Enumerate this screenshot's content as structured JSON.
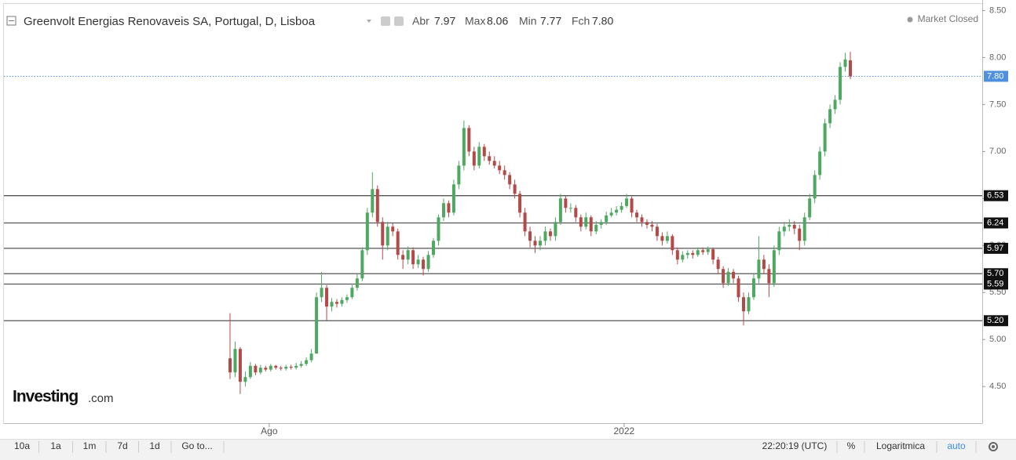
{
  "chart_data": {
    "type": "candlestick",
    "title": "Greenvolt Energias Renovaveis SA, Portugal, D, Lisboa",
    "header_values": [
      {
        "name": "Abr",
        "label": "7.97"
      },
      {
        "name": "Max",
        "label": "8.06"
      },
      {
        "name": "Min",
        "label": "7.77"
      },
      {
        "name": "Fch",
        "label": "7.80"
      }
    ],
    "status": "Market Closed",
    "logo": "Investing",
    "logo_suffix": ".com",
    "up_color": "#4fa862",
    "down_color": "#b34a4a",
    "candles": [
      [
        4.8,
        5.28,
        4.58,
        4.65
      ],
      [
        4.65,
        4.98,
        4.6,
        4.9
      ],
      [
        4.9,
        4.92,
        4.42,
        4.55
      ],
      [
        4.55,
        4.66,
        4.5,
        4.6
      ],
      [
        4.6,
        4.76,
        4.58,
        4.72
      ],
      [
        4.72,
        4.74,
        4.62,
        4.65
      ],
      [
        4.65,
        4.73,
        4.63,
        4.7
      ],
      [
        4.7,
        4.72,
        4.66,
        4.68
      ],
      [
        4.68,
        4.74,
        4.66,
        4.72
      ],
      [
        4.72,
        4.73,
        4.68,
        4.7
      ],
      [
        4.7,
        4.72,
        4.67,
        4.69
      ],
      [
        4.69,
        4.73,
        4.67,
        4.71
      ],
      [
        4.71,
        4.73,
        4.68,
        4.7
      ],
      [
        4.7,
        4.75,
        4.68,
        4.72
      ],
      [
        4.72,
        4.77,
        4.7,
        4.74
      ],
      [
        4.74,
        4.81,
        4.72,
        4.78
      ],
      [
        4.78,
        4.9,
        4.76,
        4.85
      ],
      [
        4.85,
        5.5,
        4.85,
        5.45
      ],
      [
        5.45,
        5.72,
        5.4,
        5.55
      ],
      [
        5.55,
        5.58,
        5.2,
        5.35
      ],
      [
        5.35,
        5.44,
        5.3,
        5.4
      ],
      [
        5.4,
        5.43,
        5.34,
        5.38
      ],
      [
        5.38,
        5.45,
        5.35,
        5.42
      ],
      [
        5.42,
        5.48,
        5.39,
        5.45
      ],
      [
        5.45,
        5.58,
        5.43,
        5.55
      ],
      [
        5.55,
        5.7,
        5.52,
        5.65
      ],
      [
        5.65,
        5.98,
        5.62,
        5.95
      ],
      [
        5.95,
        6.4,
        5.9,
        6.35
      ],
      [
        6.35,
        6.78,
        6.3,
        6.6
      ],
      [
        6.6,
        6.64,
        6.2,
        6.25
      ],
      [
        6.25,
        6.3,
        5.85,
        6.0
      ],
      [
        6.0,
        6.25,
        5.95,
        6.2
      ],
      [
        6.2,
        6.24,
        6.1,
        6.15
      ],
      [
        6.15,
        6.18,
        5.85,
        5.9
      ],
      [
        5.9,
        5.95,
        5.75,
        5.85
      ],
      [
        5.85,
        5.99,
        5.8,
        5.95
      ],
      [
        5.95,
        5.98,
        5.75,
        5.8
      ],
      [
        5.8,
        5.9,
        5.76,
        5.85
      ],
      [
        5.85,
        5.88,
        5.68,
        5.75
      ],
      [
        5.75,
        5.94,
        5.72,
        5.9
      ],
      [
        5.9,
        6.08,
        5.87,
        6.05
      ],
      [
        6.05,
        6.33,
        6.0,
        6.3
      ],
      [
        6.3,
        6.5,
        6.26,
        6.45
      ],
      [
        6.45,
        6.48,
        6.3,
        6.35
      ],
      [
        6.35,
        6.7,
        6.32,
        6.65
      ],
      [
        6.65,
        6.9,
        6.6,
        6.85
      ],
      [
        6.85,
        7.33,
        6.8,
        7.25
      ],
      [
        7.25,
        7.28,
        6.95,
        7.0
      ],
      [
        7.0,
        7.05,
        6.8,
        6.85
      ],
      [
        6.85,
        7.1,
        6.82,
        7.05
      ],
      [
        7.05,
        7.08,
        6.9,
        6.95
      ],
      [
        6.95,
        7.0,
        6.86,
        6.9
      ],
      [
        6.9,
        6.95,
        6.82,
        6.85
      ],
      [
        6.85,
        6.9,
        6.76,
        6.8
      ],
      [
        6.8,
        6.85,
        6.7,
        6.75
      ],
      [
        6.75,
        6.78,
        6.6,
        6.65
      ],
      [
        6.65,
        6.7,
        6.5,
        6.55
      ],
      [
        6.55,
        6.58,
        6.3,
        6.35
      ],
      [
        6.35,
        6.4,
        6.1,
        6.15
      ],
      [
        6.15,
        6.2,
        5.98,
        6.05
      ],
      [
        6.05,
        6.1,
        5.92,
        6.0
      ],
      [
        6.0,
        6.1,
        5.95,
        6.05
      ],
      [
        6.05,
        6.2,
        6.0,
        6.15
      ],
      [
        6.15,
        6.18,
        6.05,
        6.1
      ],
      [
        6.1,
        6.3,
        6.05,
        6.25
      ],
      [
        6.25,
        6.55,
        6.22,
        6.5
      ],
      [
        6.5,
        6.53,
        6.35,
        6.4
      ],
      [
        6.4,
        6.45,
        6.35,
        6.4
      ],
      [
        6.4,
        6.43,
        6.25,
        6.3
      ],
      [
        6.3,
        6.33,
        6.15,
        6.2
      ],
      [
        6.2,
        6.35,
        6.17,
        6.3
      ],
      [
        6.3,
        6.32,
        6.1,
        6.15
      ],
      [
        6.15,
        6.26,
        6.12,
        6.22
      ],
      [
        6.22,
        6.28,
        6.18,
        6.25
      ],
      [
        6.25,
        6.36,
        6.22,
        6.32
      ],
      [
        6.32,
        6.4,
        6.3,
        6.35
      ],
      [
        6.35,
        6.42,
        6.32,
        6.38
      ],
      [
        6.38,
        6.46,
        6.35,
        6.42
      ],
      [
        6.42,
        6.55,
        6.4,
        6.5
      ],
      [
        6.5,
        6.52,
        6.3,
        6.35
      ],
      [
        6.35,
        6.38,
        6.25,
        6.3
      ],
      [
        6.3,
        6.33,
        6.2,
        6.25
      ],
      [
        6.25,
        6.28,
        6.18,
        6.22
      ],
      [
        6.22,
        6.26,
        6.15,
        6.2
      ],
      [
        6.2,
        6.23,
        6.05,
        6.1
      ],
      [
        6.1,
        6.14,
        6.0,
        6.05
      ],
      [
        6.05,
        6.15,
        6.02,
        6.1
      ],
      [
        6.1,
        6.12,
        5.9,
        5.95
      ],
      [
        5.95,
        5.98,
        5.8,
        5.85
      ],
      [
        5.85,
        5.94,
        5.82,
        5.9
      ],
      [
        5.9,
        5.95,
        5.86,
        5.92
      ],
      [
        5.92,
        5.95,
        5.86,
        5.9
      ],
      [
        5.9,
        5.98,
        5.88,
        5.95
      ],
      [
        5.95,
        5.98,
        5.9,
        5.93
      ],
      [
        5.93,
        5.99,
        5.9,
        5.96
      ],
      [
        5.96,
        5.98,
        5.8,
        5.85
      ],
      [
        5.85,
        5.88,
        5.7,
        5.75
      ],
      [
        5.75,
        5.78,
        5.55,
        5.6
      ],
      [
        5.6,
        5.76,
        5.57,
        5.72
      ],
      [
        5.72,
        5.75,
        5.6,
        5.65
      ],
      [
        5.65,
        5.68,
        5.4,
        5.45
      ],
      [
        5.45,
        5.5,
        5.15,
        5.3
      ],
      [
        5.3,
        5.5,
        5.27,
        5.45
      ],
      [
        5.45,
        5.7,
        5.42,
        5.65
      ],
      [
        5.65,
        6.1,
        5.6,
        5.85
      ],
      [
        5.85,
        5.9,
        5.7,
        5.75
      ],
      [
        5.75,
        5.8,
        5.45,
        5.6
      ],
      [
        5.6,
        6.0,
        5.56,
        5.95
      ],
      [
        5.95,
        6.2,
        5.9,
        6.15
      ],
      [
        6.15,
        6.25,
        6.1,
        6.2
      ],
      [
        6.2,
        6.28,
        6.15,
        6.22
      ],
      [
        6.22,
        6.26,
        6.12,
        6.18
      ],
      [
        6.18,
        6.22,
        5.95,
        6.05
      ],
      [
        6.05,
        6.35,
        6.0,
        6.3
      ],
      [
        6.3,
        6.55,
        6.27,
        6.5
      ],
      [
        6.5,
        6.8,
        6.45,
        6.75
      ],
      [
        6.75,
        7.05,
        6.7,
        7.0
      ],
      [
        7.0,
        7.35,
        6.95,
        7.3
      ],
      [
        7.3,
        7.5,
        7.25,
        7.45
      ],
      [
        7.45,
        7.6,
        7.4,
        7.55
      ],
      [
        7.55,
        7.95,
        7.5,
        7.9
      ],
      [
        7.9,
        8.05,
        7.85,
        7.98
      ],
      [
        7.97,
        8.06,
        7.77,
        7.8
      ]
    ],
    "ylim": [
      4.11,
      8.57
    ],
    "yticks": [
      {
        "value": 4.5,
        "label": "4.50"
      },
      {
        "value": 5,
        "label": "5.00"
      },
      {
        "value": 5.5,
        "label": "5.50"
      },
      {
        "value": 6,
        "label": "6.00"
      },
      {
        "value": 6.5,
        "label": "6.50"
      },
      {
        "value": 7,
        "label": "7.00"
      },
      {
        "value": 7.5,
        "label": "7.50"
      },
      {
        "value": 8,
        "label": "8.00"
      },
      {
        "value": 8.5,
        "label": "8.50"
      }
    ],
    "xticks": [
      {
        "value": 7.7,
        "label": "Ago"
      },
      {
        "value": 77.5,
        "label": "2022"
      }
    ],
    "levels": [
      {
        "value": 6.53,
        "label": "6.53"
      },
      {
        "value": 6.24,
        "label": "6.24"
      },
      {
        "value": 5.97,
        "label": "5.97"
      },
      {
        "value": 5.7,
        "label": "5.70"
      },
      {
        "value": 5.59,
        "label": "5.59"
      },
      {
        "value": 5.2,
        "label": "5.20"
      }
    ],
    "current_price": {
      "value": 7.8,
      "label": "7.80"
    },
    "log_scale": false
  },
  "toolbar": {
    "ranges": [
      "10a",
      "1a",
      "1m",
      "7d",
      "1d",
      "Go to..."
    ],
    "time": "22:20:19 (UTC)",
    "percent": "%",
    "log": "Logaritmica",
    "auto": "auto"
  }
}
